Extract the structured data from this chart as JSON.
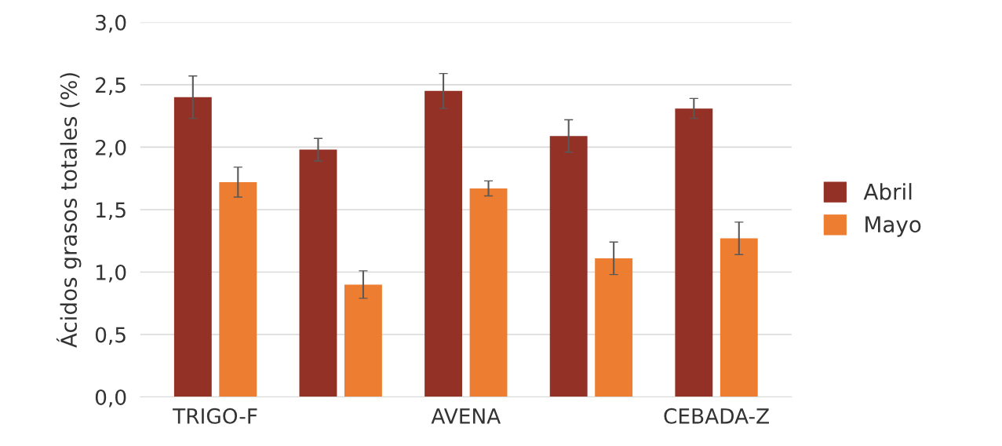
{
  "chart_data": {
    "type": "bar",
    "ylabel": "Ácidos grasos totales (%)",
    "categories": [
      "TRIGO-F",
      null,
      "AVENA",
      null,
      "CEBADA-Z"
    ],
    "series": [
      {
        "name": "Abril",
        "color": "#943126",
        "values": [
          2.4,
          1.98,
          2.45,
          2.09,
          2.31
        ],
        "errors": [
          0.17,
          0.09,
          0.14,
          0.13,
          0.08
        ]
      },
      {
        "name": "Mayo",
        "color": "#ed7d31",
        "values": [
          1.72,
          0.9,
          1.67,
          1.11,
          1.27
        ],
        "errors": [
          0.12,
          0.11,
          0.06,
          0.13,
          0.13
        ]
      }
    ],
    "ylim": [
      0,
      3.0
    ],
    "yticks": [
      {
        "value": 0,
        "label": "0,0"
      },
      {
        "value": 0.5,
        "label": "0,5"
      },
      {
        "value": 1.0,
        "label": "1,0"
      },
      {
        "value": 1.5,
        "label": "1,5"
      },
      {
        "value": 2.0,
        "label": "2,0"
      },
      {
        "value": 2.5,
        "label": "2,5"
      },
      {
        "value": 3.0,
        "label": "3,0"
      }
    ],
    "grid": "y",
    "legend": "right"
  }
}
